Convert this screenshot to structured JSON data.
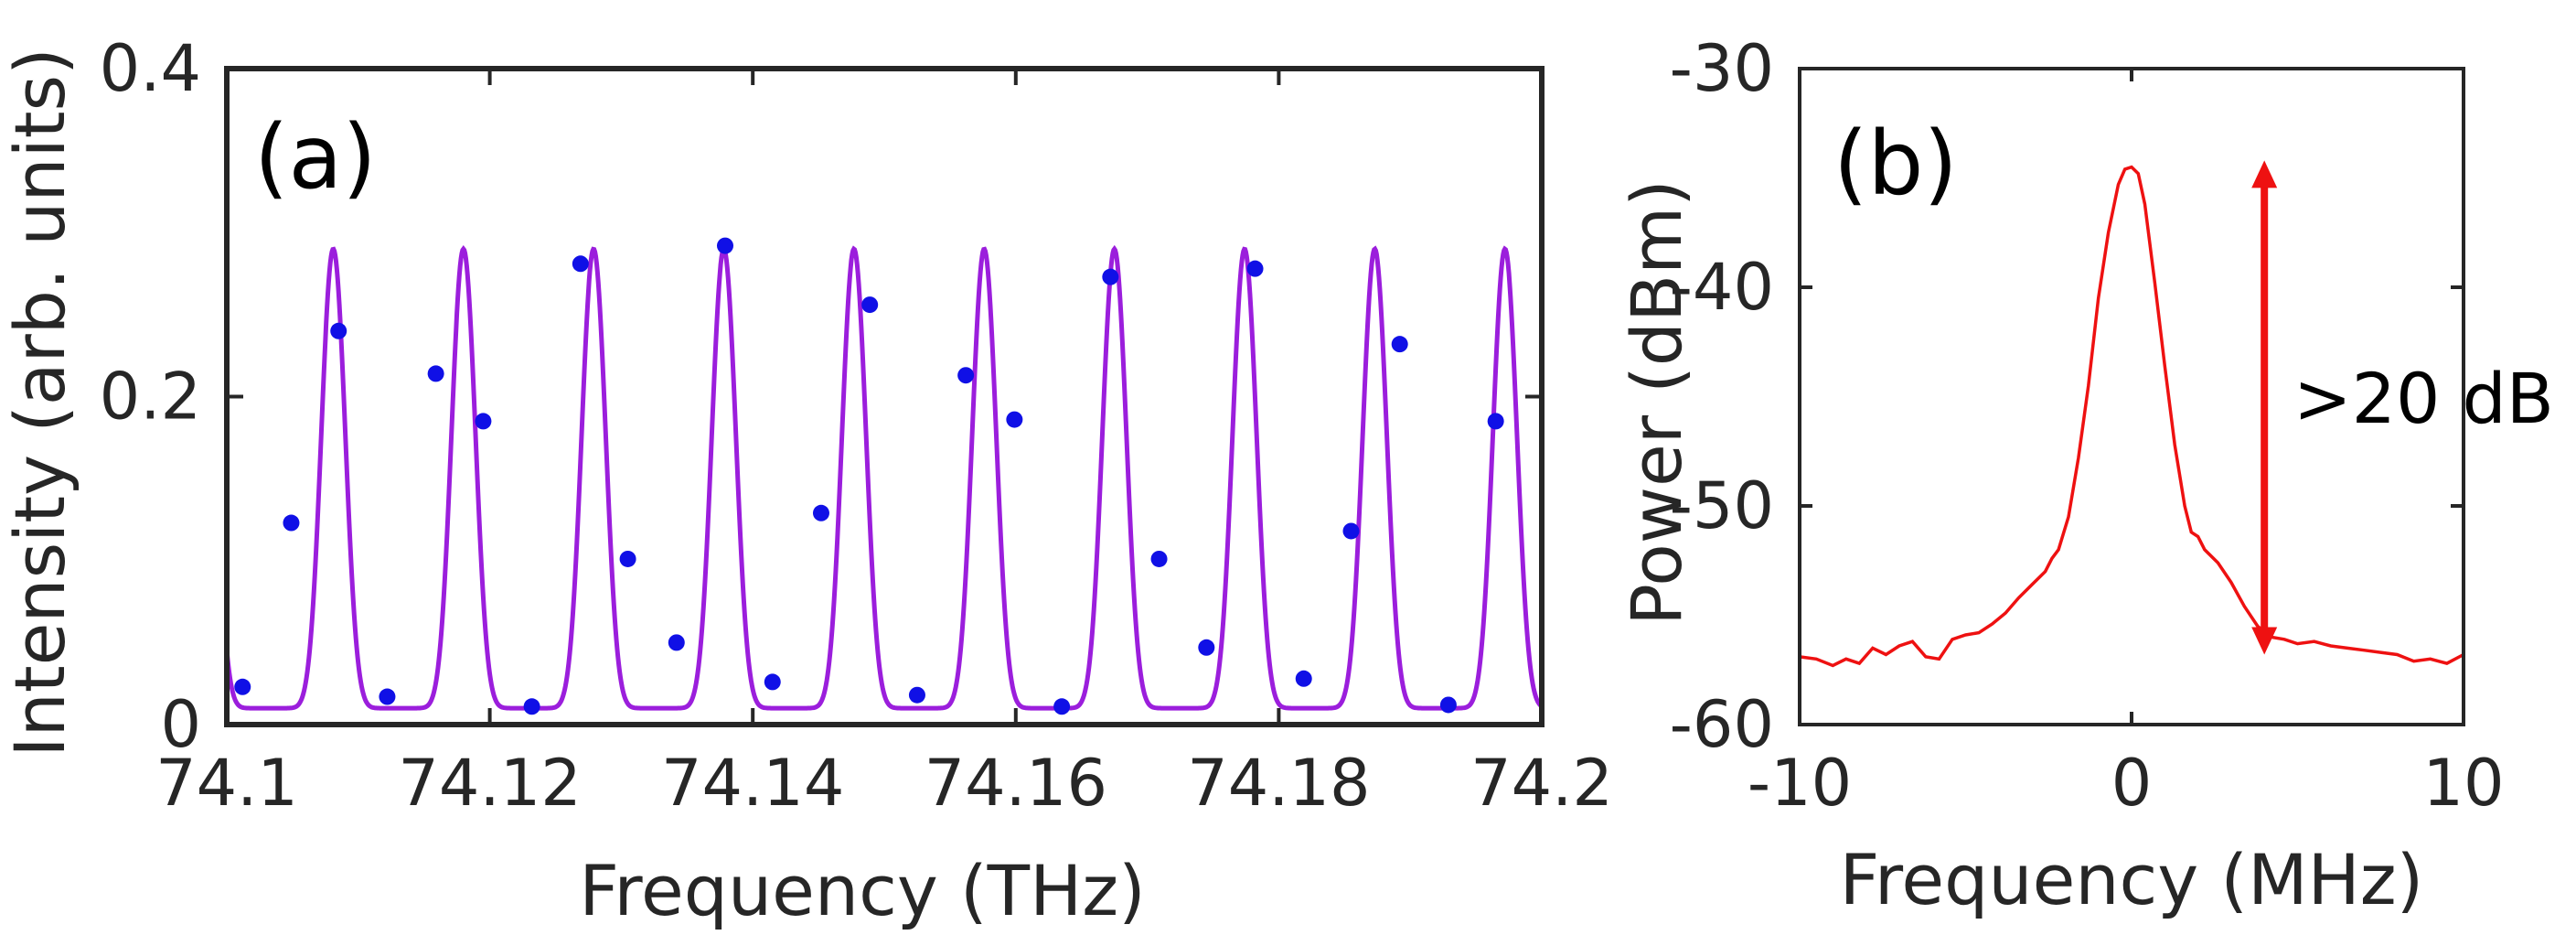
{
  "colors": {
    "axes": "#262626",
    "fit_line": "#9B1EDC",
    "markers": "#1010E6",
    "spectrum": "#EE1111",
    "arrow": "#EE1111"
  },
  "chart_data": [
    {
      "type": "scatter",
      "panel_label": "(a)",
      "xlabel": "Frequency (THz)",
      "ylabel": "Intensity (arb. units)",
      "xlim": [
        74.1,
        74.2
      ],
      "ylim": [
        0,
        0.4
      ],
      "xticks": [
        74.1,
        74.12,
        74.14,
        74.16,
        74.18,
        74.2
      ],
      "xtick_labels": [
        "74.1",
        "74.12",
        "74.14",
        "74.16",
        "74.18",
        "74.2"
      ],
      "yticks": [
        0,
        0.2,
        0.4
      ],
      "ytick_labels": [
        "0",
        "0.2",
        "0.4"
      ],
      "grid": false,
      "series": [
        {
          "style": "markers",
          "x": [
            74.1012,
            74.1049,
            74.1085,
            74.1122,
            74.1159,
            74.1195,
            74.1232,
            74.1269,
            74.1305,
            74.1342,
            74.1379,
            74.1415,
            74.1452,
            74.1489,
            74.1525,
            74.1562,
            74.1599,
            74.1635,
            74.1672,
            74.1709,
            74.1745,
            74.1782,
            74.1819,
            74.1855,
            74.1892,
            74.1929,
            74.1965
          ],
          "y": [
            0.023,
            0.123,
            0.24,
            0.017,
            0.214,
            0.185,
            0.011,
            0.281,
            0.101,
            0.05,
            0.292,
            0.026,
            0.129,
            0.256,
            0.018,
            0.213,
            0.186,
            0.011,
            0.273,
            0.101,
            0.047,
            0.278,
            0.028,
            0.118,
            0.232,
            0.012,
            0.185
          ]
        },
        {
          "style": "line",
          "model": "periodic_resonance",
          "period_thz": 0.0099,
          "first_peak_thz": 74.1081,
          "baseline": 0.01,
          "peak": 0.29,
          "x_range": [
            74.1,
            74.2
          ]
        }
      ]
    },
    {
      "type": "line",
      "panel_label": "(b)",
      "xlabel": "Frequency (MHz)",
      "ylabel": "Power (dBm)",
      "xlim": [
        -10,
        10
      ],
      "ylim": [
        -60,
        -30
      ],
      "xticks": [
        -10,
        0,
        10
      ],
      "xtick_labels": [
        "-10",
        "0",
        "10"
      ],
      "yticks": [
        -60,
        -50,
        -40,
        -30
      ],
      "ytick_labels": [
        "-60",
        "-50",
        "-40",
        "-30"
      ],
      "grid": false,
      "series": [
        {
          "x": [
            -10,
            -9.5,
            -9,
            -8.6,
            -8.2,
            -7.8,
            -7.4,
            -7,
            -6.6,
            -6.2,
            -5.8,
            -5.4,
            -5,
            -4.6,
            -4.2,
            -3.8,
            -3.4,
            -3.0,
            -2.6,
            -2.4,
            -2.2,
            -1.9,
            -1.6,
            -1.3,
            -1.0,
            -0.7,
            -0.4,
            -0.2,
            0,
            0.2,
            0.4,
            0.7,
            1.0,
            1.3,
            1.6,
            1.8,
            2.0,
            2.2,
            2.6,
            3.0,
            3.4,
            3.8,
            4.2,
            4.6,
            5.0,
            5.5,
            6.0,
            6.5,
            7.0,
            7.5,
            8.0,
            8.5,
            9.0,
            9.5,
            10
          ],
          "y": [
            -56.9,
            -57.0,
            -57.3,
            -57.0,
            -57.2,
            -56.5,
            -56.8,
            -56.4,
            -56.2,
            -56.9,
            -57.0,
            -56.1,
            -55.9,
            -55.8,
            -55.4,
            -54.9,
            -54.2,
            -53.6,
            -53.0,
            -52.4,
            -52.0,
            -50.5,
            -47.8,
            -44.5,
            -40.5,
            -37.5,
            -35.3,
            -34.6,
            -34.5,
            -34.8,
            -36.2,
            -39.8,
            -43.6,
            -47.2,
            -50.0,
            -51.2,
            -51.4,
            -52.0,
            -52.6,
            -53.5,
            -54.6,
            -55.5,
            -56.0,
            -56.1,
            -56.3,
            -56.2,
            -56.4,
            -56.5,
            -56.6,
            -56.7,
            -56.8,
            -57.1,
            -57.0,
            -57.2,
            -56.8
          ]
        }
      ],
      "annotation": {
        "text": ">20 dB",
        "arrow_x": 4.0,
        "arrow_y_from": -56.8,
        "arrow_y_to": -34.2
      }
    }
  ]
}
